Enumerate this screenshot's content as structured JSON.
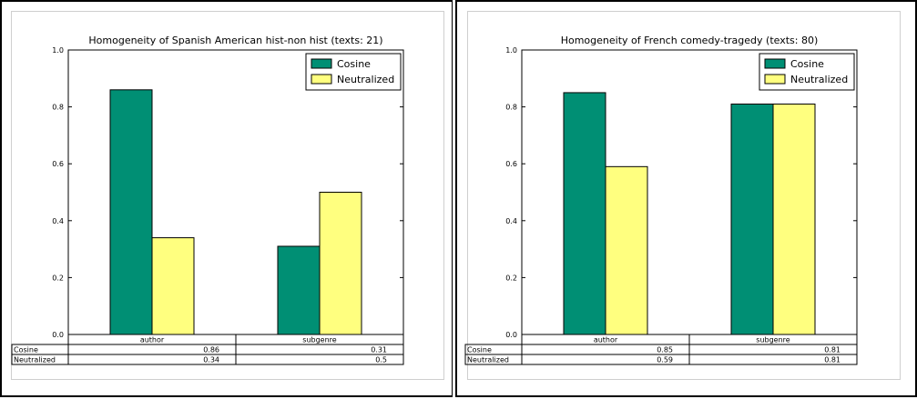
{
  "chart_data": [
    {
      "type": "bar",
      "title": "Homogeneity of Spanish American hist-non hist (texts: 21)",
      "categories": [
        "author",
        "subgenre"
      ],
      "series": [
        {
          "name": "Cosine",
          "values": [
            0.86,
            0.31
          ],
          "color": "#008f74"
        },
        {
          "name": "Neutralized",
          "values": [
            0.34,
            0.5
          ],
          "color": "#ffff7f"
        }
      ],
      "ylim": [
        0,
        1.0
      ],
      "yticks": [
        "0.0",
        "0.2",
        "0.4",
        "0.6",
        "0.8",
        "1.0"
      ],
      "legend": "top-right",
      "table": {
        "row_labels": [
          "Cosine",
          "Neutralized"
        ],
        "cells": [
          [
            "0.86",
            "0.31"
          ],
          [
            "0.34",
            "0.5"
          ]
        ]
      }
    },
    {
      "type": "bar",
      "title": "Homogeneity of French comedy-tragedy (texts: 80)",
      "categories": [
        "author",
        "subgenre"
      ],
      "series": [
        {
          "name": "Cosine",
          "values": [
            0.85,
            0.81
          ],
          "color": "#008f74"
        },
        {
          "name": "Neutralized",
          "values": [
            0.59,
            0.81
          ],
          "color": "#ffff7f"
        }
      ],
      "ylim": [
        0,
        1.0
      ],
      "yticks": [
        "0.0",
        "0.2",
        "0.4",
        "0.6",
        "0.8",
        "1.0"
      ],
      "legend": "top-right",
      "table": {
        "row_labels": [
          "Cosine",
          "Neutralized"
        ],
        "cells": [
          [
            "0.85",
            "0.81"
          ],
          [
            "0.59",
            "0.81"
          ]
        ]
      }
    }
  ]
}
